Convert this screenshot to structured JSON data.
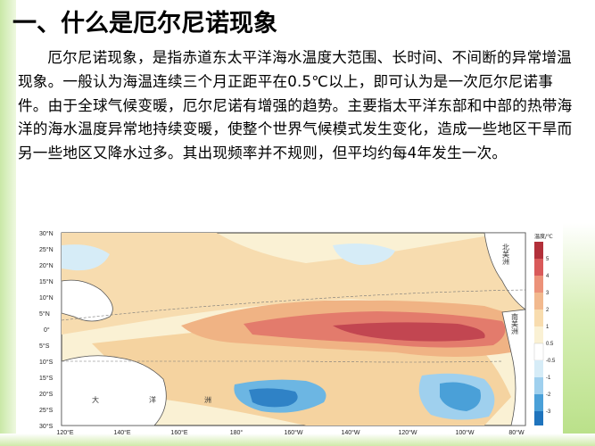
{
  "title": "一、什么是厄尔尼诺现象",
  "paragraph": "厄尔尼诺现象，是指赤道东太平洋海水温度大范围、长时间、不间断的异常增温现象。一般认为海温连续三个月正距平在0.5℃以上，即可认为是一次厄尔尼诺事件。由于全球气候变暖，厄尔尼诺有增强的趋势。主要指太平洋东部和中部的热带海洋的海水温度异常地持续变暖，使整个世界气候模式发生变化，造成一些地区干旱而另一些地区又降水过多。其出现频率并不规则，但平均约每4年发生一次。",
  "map": {
    "lat_labels": [
      "30°N",
      "25°N",
      "20°N",
      "15°N",
      "10°N",
      "5°N",
      "0°",
      "5°S",
      "10°S",
      "15°S",
      "20°S",
      "25°S",
      "30°S"
    ],
    "lon_labels": [
      "120°E",
      "140°E",
      "160°E",
      "180°",
      "160°W",
      "140°W",
      "120°W",
      "100°W",
      "80°W"
    ],
    "region_labels": [
      "北美洲",
      "南美洲",
      "大",
      "洋",
      "洲"
    ],
    "legend_title": "温度/℃",
    "legend_values": [
      "5",
      "4",
      "3",
      "2",
      "1",
      "0.5",
      "-0.5",
      "-1",
      "-2",
      "-3"
    ],
    "legend_colors": [
      "#b2303a",
      "#d95a5a",
      "#ec9279",
      "#f2b98e",
      "#f8dcae",
      "#faf1d4",
      "#ffffff",
      "#d6ecf7",
      "#9fd0ee",
      "#4aa0d8",
      "#1f74bd"
    ]
  }
}
